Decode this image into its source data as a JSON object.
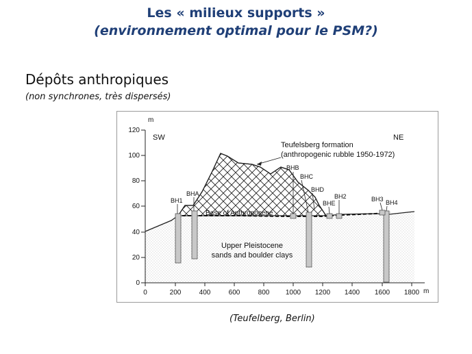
{
  "title": {
    "line1": "Les « milieux supports »",
    "line2": "(environnement optimal pour le PSM?)"
  },
  "section": {
    "heading": "Dépôts anthropiques",
    "subheading": "(non synchrones, très dispersés)"
  },
  "figure": {
    "y_axis_unit": "m",
    "x_axis_unit": "m",
    "y_ticks": [
      "0",
      "20",
      "40",
      "60",
      "80",
      "100",
      "120"
    ],
    "x_ticks": [
      "0",
      "200",
      "400",
      "600",
      "800",
      "1000",
      "1200",
      "1400",
      "1600",
      "1800"
    ],
    "direction_left": "SW",
    "direction_right": "NE",
    "formation_label_line1": "Teufelsberg formation",
    "formation_label_line2": "(anthropogenic rubble 1950-1972)",
    "base_label": "Base of Anthropocene",
    "lower_label_line1": "Upper Pleistocene",
    "lower_label_line2": "sands and boulder clays",
    "boreholes": {
      "bh1": "BH1",
      "bha": "BHA",
      "bhb": "BHB",
      "bhc": "BHC",
      "bhd": "BHD",
      "bhe": "BHE",
      "bh2": "BH2",
      "bh3": "BH3",
      "bh4": "BH4"
    },
    "colors": {
      "hatch": "#222222",
      "borehole_fill": "#c8c8c8",
      "sand_dots": "#b0b0b0"
    }
  },
  "caption": "(Teufelberg, Berlin)"
}
